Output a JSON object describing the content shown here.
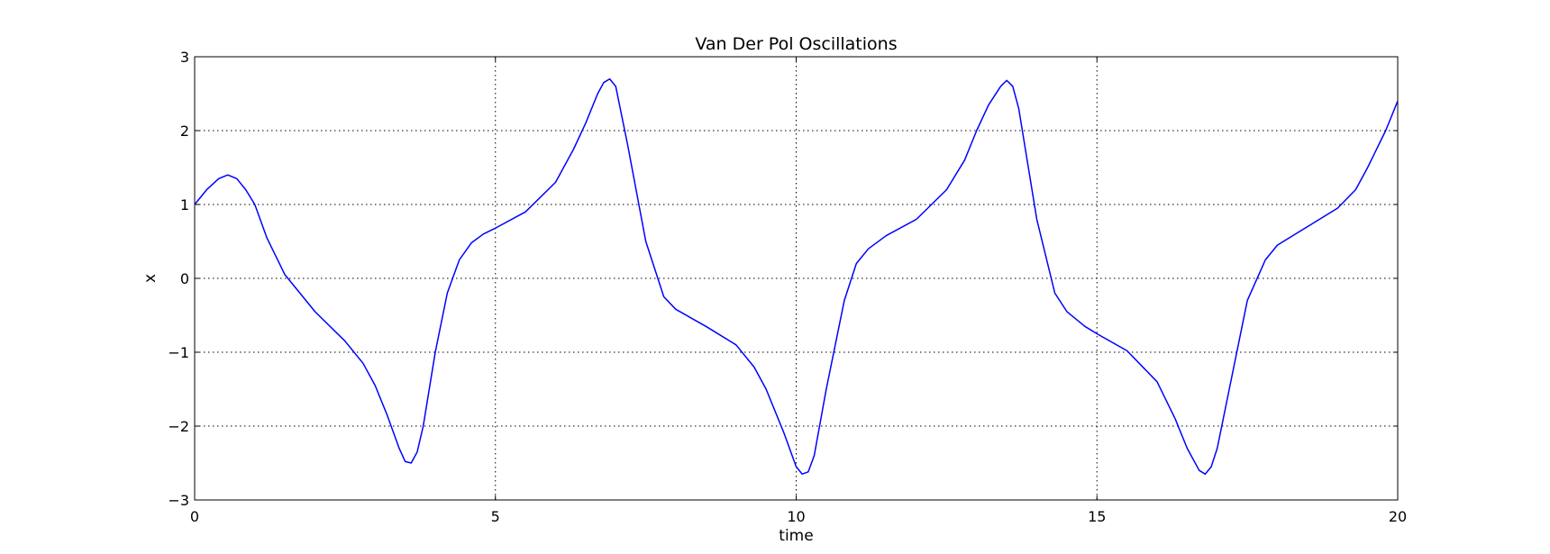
{
  "chart_data": {
    "type": "line",
    "title": "Van Der Pol Oscillations",
    "xlabel": "time",
    "ylabel": "x",
    "xlim": [
      0,
      20
    ],
    "ylim": [
      -3,
      3
    ],
    "xticks": [
      0,
      5,
      10,
      15,
      20
    ],
    "xtick_labels": [
      "0",
      "5",
      "10",
      "15",
      "20"
    ],
    "yticks": [
      -3,
      -2,
      -1,
      0,
      1,
      2,
      3
    ],
    "ytick_labels": [
      "−3",
      "−2",
      "−1",
      "0",
      "1",
      "2",
      "3"
    ],
    "grid": true,
    "legend": false,
    "colors": {
      "line": "#0000ff",
      "grid": "#000000",
      "axes": "#000000"
    },
    "series": [
      {
        "x": [
          0.0,
          0.2,
          0.4,
          0.55,
          0.7,
          0.85,
          1.0,
          1.2,
          1.5,
          2.0,
          2.5,
          2.8,
          3.0,
          3.2,
          3.4,
          3.5,
          3.6,
          3.7,
          3.8,
          4.0,
          4.2,
          4.4,
          4.6,
          4.8,
          5.0,
          5.5,
          6.0,
          6.3,
          6.5,
          6.7,
          6.8,
          6.9,
          7.0,
          7.2,
          7.5,
          7.8,
          8.0,
          8.5,
          9.0,
          9.3,
          9.5,
          9.8,
          10.0,
          10.1,
          10.2,
          10.3,
          10.5,
          10.8,
          11.0,
          11.2,
          11.5,
          12.0,
          12.5,
          12.8,
          13.0,
          13.2,
          13.4,
          13.5,
          13.6,
          13.7,
          14.0,
          14.3,
          14.5,
          14.8,
          15.0,
          15.5,
          16.0,
          16.3,
          16.5,
          16.7,
          16.8,
          16.9,
          17.0,
          17.2,
          17.5,
          17.8,
          18.0,
          18.5,
          19.0,
          19.3,
          19.5,
          19.8,
          20.0
        ],
        "values": [
          1.0,
          1.2,
          1.35,
          1.4,
          1.35,
          1.2,
          1.0,
          0.55,
          0.05,
          -0.45,
          -0.85,
          -1.15,
          -1.45,
          -1.85,
          -2.3,
          -2.48,
          -2.5,
          -2.35,
          -2.0,
          -1.0,
          -0.2,
          0.25,
          0.48,
          0.6,
          0.68,
          0.9,
          1.3,
          1.75,
          2.1,
          2.5,
          2.65,
          2.7,
          2.6,
          1.8,
          0.5,
          -0.25,
          -0.42,
          -0.65,
          -0.9,
          -1.2,
          -1.5,
          -2.1,
          -2.55,
          -2.65,
          -2.62,
          -2.4,
          -1.5,
          -0.3,
          0.2,
          0.4,
          0.58,
          0.8,
          1.2,
          1.6,
          2.0,
          2.35,
          2.6,
          2.68,
          2.6,
          2.3,
          0.8,
          -0.2,
          -0.45,
          -0.65,
          -0.75,
          -0.98,
          -1.4,
          -1.9,
          -2.3,
          -2.6,
          -2.65,
          -2.55,
          -2.3,
          -1.5,
          -0.3,
          0.25,
          0.45,
          0.7,
          0.95,
          1.2,
          1.5,
          2.0,
          2.4
        ]
      }
    ]
  }
}
